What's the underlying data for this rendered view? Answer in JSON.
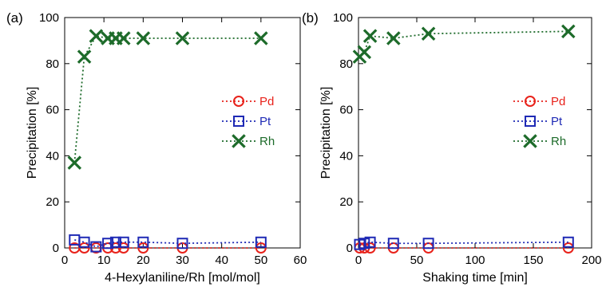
{
  "chart_data": [
    {
      "type": "scatter",
      "panel_label": "(a)",
      "xlabel": "4-Hexylaniline/Rh [mol/mol]",
      "ylabel": "Precipitation [%]",
      "xlim": [
        0,
        60
      ],
      "ylim": [
        0,
        100
      ],
      "xticks": [
        0,
        10,
        20,
        30,
        40,
        50,
        60
      ],
      "yticks": [
        0,
        20,
        40,
        60,
        80,
        100
      ],
      "grid": false,
      "legend_position": "right-middle",
      "series": [
        {
          "name": "Pd",
          "marker": "circle",
          "color": "#e8221b",
          "line": "dotted",
          "x": [
            2.5,
            5,
            8,
            11,
            13,
            15,
            20,
            30,
            50
          ],
          "y": [
            0,
            0,
            0,
            0,
            0,
            0,
            0,
            0,
            0
          ]
        },
        {
          "name": "Pt",
          "marker": "square",
          "color": "#1f2ab5",
          "line": "dotted",
          "x": [
            2.5,
            5,
            8,
            11,
            13,
            15,
            20,
            30,
            50
          ],
          "y": [
            3.5,
            2.5,
            0.5,
            2,
            2.5,
            2.5,
            2.5,
            2,
            2.5
          ]
        },
        {
          "name": "Rh",
          "marker": "x",
          "color": "#1d6b2a",
          "line": "dotted",
          "x": [
            2.5,
            5,
            8,
            11,
            13,
            15,
            20,
            30,
            50
          ],
          "y": [
            37,
            83,
            92,
            91,
            91,
            91,
            91,
            91,
            91
          ]
        }
      ]
    },
    {
      "type": "scatter",
      "panel_label": "(b)",
      "xlabel": "Shaking time [min]",
      "ylabel": "Precipitation [%]",
      "xlim": [
        0,
        200
      ],
      "ylim": [
        0,
        100
      ],
      "xticks": [
        0,
        50,
        100,
        150,
        200
      ],
      "yticks": [
        0,
        20,
        40,
        60,
        80,
        100
      ],
      "grid": false,
      "legend_position": "right-middle",
      "series": [
        {
          "name": "Pd",
          "marker": "circle",
          "color": "#e8221b",
          "line": "dotted",
          "x": [
            1,
            5,
            10,
            30,
            60,
            180
          ],
          "y": [
            0,
            0,
            0,
            0,
            0,
            0
          ]
        },
        {
          "name": "Pt",
          "marker": "square",
          "color": "#1f2ab5",
          "line": "dotted",
          "x": [
            1,
            5,
            10,
            30,
            60,
            180
          ],
          "y": [
            1.5,
            2,
            2.5,
            2,
            2,
            2.5
          ]
        },
        {
          "name": "Rh",
          "marker": "x",
          "color": "#1d6b2a",
          "line": "dotted",
          "x": [
            1,
            5,
            10,
            30,
            60,
            180
          ],
          "y": [
            83,
            85,
            92,
            91,
            93,
            94
          ]
        }
      ]
    }
  ]
}
